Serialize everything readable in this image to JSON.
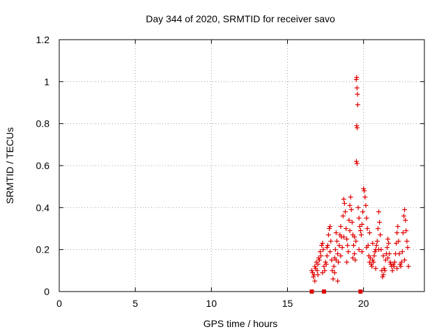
{
  "chart_data": {
    "type": "scatter",
    "title": "Day 344 of 2020, SRMTID for receiver savo",
    "xlabel": "GPS time / hours",
    "ylabel": "SRMTID / TECUs",
    "xlim": [
      0,
      24
    ],
    "ylim": [
      0,
      1.2
    ],
    "x_ticks": [
      0,
      5,
      10,
      15,
      20
    ],
    "x_tick_labels": [
      "0",
      "5",
      "10",
      "15",
      "20"
    ],
    "y_ticks": [
      0,
      0.2,
      0.4,
      0.6,
      0.8,
      1.0,
      1.2
    ],
    "y_tick_labels": [
      "0",
      "0.2",
      "0.4",
      "0.6",
      "0.8",
      "1",
      "1.2"
    ],
    "grid": true,
    "marker": "plus",
    "series_color": "#e00000",
    "series": [
      {
        "name": "SRMTID",
        "points": [
          [
            16.6,
            0.1
          ],
          [
            16.65,
            0.09
          ],
          [
            16.7,
            0.07
          ],
          [
            16.75,
            0.08
          ],
          [
            16.8,
            0.12
          ],
          [
            16.85,
            0.11
          ],
          [
            16.9,
            0.14
          ],
          [
            16.95,
            0.1
          ],
          [
            17.0,
            0.13
          ],
          [
            17.05,
            0.16
          ],
          [
            17.1,
            0.15
          ],
          [
            17.15,
            0.19
          ],
          [
            17.2,
            0.17
          ],
          [
            17.25,
            0.22
          ],
          [
            17.3,
            0.23
          ],
          [
            17.35,
            0.2
          ],
          [
            17.4,
            0.12
          ],
          [
            17.45,
            0.1
          ],
          [
            17.5,
            0.14
          ],
          [
            17.55,
            0.13
          ],
          [
            17.6,
            0.21
          ],
          [
            17.65,
            0.22
          ],
          [
            17.7,
            0.27
          ],
          [
            17.75,
            0.3
          ],
          [
            17.8,
            0.31
          ],
          [
            17.85,
            0.24
          ],
          [
            17.9,
            0.15
          ],
          [
            17.95,
            0.1
          ],
          [
            18.0,
            0.06
          ],
          [
            18.05,
            0.12
          ],
          [
            18.1,
            0.16
          ],
          [
            18.15,
            0.2
          ],
          [
            18.2,
            0.28
          ],
          [
            18.25,
            0.24
          ],
          [
            18.3,
            0.18
          ],
          [
            18.35,
            0.14
          ],
          [
            18.4,
            0.22
          ],
          [
            18.45,
            0.27
          ],
          [
            18.5,
            0.31
          ],
          [
            18.55,
            0.26
          ],
          [
            18.6,
            0.21
          ],
          [
            18.65,
            0.36
          ],
          [
            18.7,
            0.44
          ],
          [
            18.75,
            0.42
          ],
          [
            18.8,
            0.38
          ],
          [
            18.85,
            0.3
          ],
          [
            18.9,
            0.25
          ],
          [
            18.95,
            0.22
          ],
          [
            19.0,
            0.19
          ],
          [
            19.05,
            0.34
          ],
          [
            19.1,
            0.41
          ],
          [
            19.15,
            0.45
          ],
          [
            19.2,
            0.39
          ],
          [
            19.25,
            0.33
          ],
          [
            19.3,
            0.27
          ],
          [
            19.35,
            0.22
          ],
          [
            19.4,
            0.18
          ],
          [
            19.45,
            0.15
          ],
          [
            19.5,
            0.24
          ],
          [
            19.52,
            1.01
          ],
          [
            19.55,
            1.02
          ],
          [
            19.57,
            0.97
          ],
          [
            19.6,
            0.94
          ],
          [
            19.62,
            0.89
          ],
          [
            19.55,
            0.79
          ],
          [
            19.58,
            0.78
          ],
          [
            19.53,
            0.62
          ],
          [
            19.57,
            0.61
          ],
          [
            19.65,
            0.4
          ],
          [
            19.7,
            0.35
          ],
          [
            19.75,
            0.31
          ],
          [
            19.8,
            0.29
          ],
          [
            19.85,
            0.27
          ],
          [
            19.9,
            0.32
          ],
          [
            19.95,
            0.38
          ],
          [
            20.0,
            0.49
          ],
          [
            20.05,
            0.48
          ],
          [
            20.1,
            0.45
          ],
          [
            20.15,
            0.41
          ],
          [
            20.2,
            0.35
          ],
          [
            20.25,
            0.3
          ],
          [
            20.3,
            0.22
          ],
          [
            20.35,
            0.17
          ],
          [
            20.4,
            0.14
          ],
          [
            20.45,
            0.16
          ],
          [
            20.5,
            0.13
          ],
          [
            20.55,
            0.12
          ],
          [
            20.6,
            0.15
          ],
          [
            20.65,
            0.14
          ],
          [
            20.7,
            0.17
          ],
          [
            20.75,
            0.19
          ],
          [
            20.8,
            0.2
          ],
          [
            20.85,
            0.22
          ],
          [
            20.9,
            0.24
          ],
          [
            20.95,
            0.3
          ],
          [
            21.0,
            0.38
          ],
          [
            21.05,
            0.33
          ],
          [
            21.1,
            0.27
          ],
          [
            21.15,
            0.2
          ],
          [
            21.2,
            0.1
          ],
          [
            21.25,
            0.07
          ],
          [
            21.3,
            0.08
          ],
          [
            21.35,
            0.11
          ],
          [
            21.4,
            0.1
          ],
          [
            21.45,
            0.15
          ],
          [
            21.5,
            0.18
          ],
          [
            21.55,
            0.21
          ],
          [
            21.6,
            0.25
          ],
          [
            21.65,
            0.23
          ],
          [
            21.7,
            0.18
          ],
          [
            21.75,
            0.14
          ],
          [
            21.8,
            0.13
          ],
          [
            21.85,
            0.12
          ],
          [
            21.9,
            0.1
          ],
          [
            21.95,
            0.13
          ],
          [
            22.0,
            0.12
          ],
          [
            22.05,
            0.14
          ],
          [
            22.1,
            0.18
          ],
          [
            22.15,
            0.23
          ],
          [
            22.2,
            0.28
          ],
          [
            22.25,
            0.31
          ],
          [
            22.3,
            0.24
          ],
          [
            22.35,
            0.18
          ],
          [
            22.4,
            0.13
          ],
          [
            22.45,
            0.12
          ],
          [
            22.5,
            0.14
          ],
          [
            22.55,
            0.19
          ],
          [
            22.6,
            0.28
          ],
          [
            22.65,
            0.36
          ],
          [
            22.7,
            0.39
          ],
          [
            22.75,
            0.34
          ],
          [
            22.8,
            0.29
          ],
          [
            22.85,
            0.24
          ],
          [
            22.9,
            0.21
          ],
          [
            22.95,
            0.12
          ],
          [
            18.3,
            0.05
          ],
          [
            18.1,
            0.09
          ],
          [
            18.5,
            0.17
          ],
          [
            18.9,
            0.14
          ],
          [
            19.3,
            0.16
          ],
          [
            19.9,
            0.19
          ],
          [
            20.2,
            0.21
          ],
          [
            20.6,
            0.23
          ],
          [
            21.0,
            0.2
          ],
          [
            17.6,
            0.17
          ],
          [
            17.3,
            0.09
          ],
          [
            17.0,
            0.08
          ],
          [
            16.8,
            0.05
          ],
          [
            18.7,
            0.26
          ],
          [
            19.1,
            0.29
          ],
          [
            19.7,
            0.2
          ],
          [
            20.4,
            0.28
          ],
          [
            21.6,
            0.16
          ],
          [
            22.2,
            0.11
          ],
          [
            22.7,
            0.15
          ],
          [
            21.3,
            0.17
          ],
          [
            20.8,
            0.11
          ],
          [
            19.4,
            0.26
          ],
          [
            18.2,
            0.15
          ],
          [
            17.8,
            0.19
          ]
        ]
      }
    ],
    "zero_markers_x": [
      16.6,
      17.4,
      19.8
    ]
  }
}
